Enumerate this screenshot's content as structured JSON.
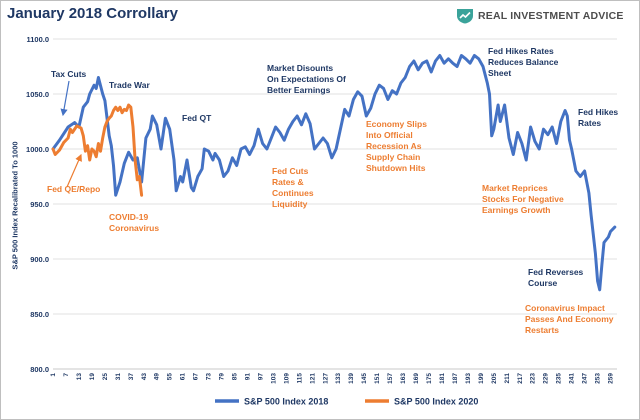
{
  "header": {
    "title": "January 2018 Corrollary",
    "brand": "REAL INVESTMENT ADVICE"
  },
  "colors": {
    "series_2018": "#4472c4",
    "series_2020": "#ed7d31",
    "annotation_blue": "#1f3864",
    "annotation_orange": "#ed7d31",
    "brand_green": "#3aa39a"
  },
  "chart_data": {
    "type": "line",
    "ylabel": "S&P 500 Index Recalibrated To 1000",
    "ylim": [
      800,
      1100
    ],
    "yticks": [
      800,
      850,
      900,
      950,
      1000,
      1050,
      1100
    ],
    "ytick_labels": [
      "800.0",
      "850.0",
      "900.0",
      "950.0",
      "1000.0",
      "1050.0",
      "1100.0"
    ],
    "xlim": [
      1,
      262
    ],
    "xticks": [
      1,
      7,
      13,
      19,
      25,
      31,
      37,
      43,
      49,
      55,
      61,
      67,
      73,
      79,
      85,
      91,
      97,
      103,
      109,
      115,
      121,
      127,
      133,
      139,
      145,
      151,
      157,
      163,
      169,
      175,
      181,
      187,
      193,
      199,
      205,
      211,
      217,
      223,
      229,
      235,
      241,
      247,
      253,
      259
    ],
    "grid": true,
    "legend_position": "bottom",
    "series": [
      {
        "name": "S&P 500 Index 2018",
        "color": "#4472c4",
        "points": [
          [
            1,
            1000
          ],
          [
            4,
            1008
          ],
          [
            8,
            1020
          ],
          [
            11,
            1024
          ],
          [
            13,
            1020
          ],
          [
            15,
            1038
          ],
          [
            17,
            1043
          ],
          [
            18,
            1050
          ],
          [
            20,
            1058
          ],
          [
            21,
            1055
          ],
          [
            22,
            1065
          ],
          [
            24,
            1050
          ],
          [
            25,
            1044
          ],
          [
            27,
            1012
          ],
          [
            28,
            1003
          ],
          [
            29,
            985
          ],
          [
            30,
            958
          ],
          [
            32,
            970
          ],
          [
            34,
            987
          ],
          [
            36,
            997
          ],
          [
            38,
            990
          ],
          [
            40,
            992
          ],
          [
            42,
            970
          ],
          [
            44,
            1010
          ],
          [
            46,
            1018
          ],
          [
            47,
            1030
          ],
          [
            49,
            1022
          ],
          [
            51,
            1000
          ],
          [
            53,
            1028
          ],
          [
            55,
            1018
          ],
          [
            57,
            990
          ],
          [
            58,
            962
          ],
          [
            60,
            975
          ],
          [
            61,
            970
          ],
          [
            63,
            990
          ],
          [
            65,
            965
          ],
          [
            66,
            962
          ],
          [
            68,
            975
          ],
          [
            70,
            982
          ],
          [
            71,
            1000
          ],
          [
            73,
            998
          ],
          [
            75,
            990
          ],
          [
            76,
            996
          ],
          [
            78,
            990
          ],
          [
            80,
            975
          ],
          [
            82,
            980
          ],
          [
            84,
            992
          ],
          [
            86,
            985
          ],
          [
            88,
            1000
          ],
          [
            90,
            1002
          ],
          [
            92,
            995
          ],
          [
            94,
            1003
          ],
          [
            96,
            1018
          ],
          [
            98,
            1005
          ],
          [
            100,
            1000
          ],
          [
            102,
            1010
          ],
          [
            104,
            1020
          ],
          [
            106,
            1015
          ],
          [
            108,
            1008
          ],
          [
            110,
            1018
          ],
          [
            112,
            1025
          ],
          [
            114,
            1030
          ],
          [
            116,
            1022
          ],
          [
            118,
            1032
          ],
          [
            120,
            1023
          ],
          [
            122,
            1000
          ],
          [
            124,
            1005
          ],
          [
            126,
            1010
          ],
          [
            128,
            1005
          ],
          [
            130,
            992
          ],
          [
            132,
            1000
          ],
          [
            134,
            1018
          ],
          [
            136,
            1036
          ],
          [
            138,
            1030
          ],
          [
            140,
            1045
          ],
          [
            142,
            1052
          ],
          [
            144,
            1048
          ],
          [
            146,
            1030
          ],
          [
            148,
            1037
          ],
          [
            150,
            1050
          ],
          [
            152,
            1058
          ],
          [
            154,
            1055
          ],
          [
            156,
            1045
          ],
          [
            158,
            1053
          ],
          [
            160,
            1050
          ],
          [
            162,
            1060
          ],
          [
            164,
            1065
          ],
          [
            166,
            1075
          ],
          [
            168,
            1080
          ],
          [
            170,
            1072
          ],
          [
            172,
            1078
          ],
          [
            174,
            1080
          ],
          [
            176,
            1070
          ],
          [
            178,
            1080
          ],
          [
            180,
            1085
          ],
          [
            182,
            1078
          ],
          [
            184,
            1082
          ],
          [
            186,
            1078
          ],
          [
            188,
            1075
          ],
          [
            190,
            1085
          ],
          [
            192,
            1082
          ],
          [
            194,
            1078
          ],
          [
            196,
            1085
          ],
          [
            198,
            1082
          ],
          [
            200,
            1075
          ],
          [
            202,
            1060
          ],
          [
            203,
            1050
          ],
          [
            204,
            1012
          ],
          [
            205,
            1018
          ],
          [
            207,
            1040
          ],
          [
            208,
            1025
          ],
          [
            210,
            1040
          ],
          [
            212,
            1010
          ],
          [
            214,
            995
          ],
          [
            216,
            1015
          ],
          [
            218,
            1005
          ],
          [
            220,
            990
          ],
          [
            222,
            1020
          ],
          [
            224,
            1007
          ],
          [
            226,
            1000
          ],
          [
            228,
            1018
          ],
          [
            230,
            1013
          ],
          [
            232,
            1020
          ],
          [
            234,
            1005
          ],
          [
            236,
            1025
          ],
          [
            238,
            1035
          ],
          [
            239,
            1030
          ],
          [
            240,
            1008
          ],
          [
            241,
            1000
          ],
          [
            243,
            980
          ],
          [
            245,
            975
          ],
          [
            247,
            980
          ],
          [
            249,
            960
          ],
          [
            250,
            940
          ],
          [
            252,
            905
          ],
          [
            253,
            880
          ],
          [
            254,
            872
          ],
          [
            255,
            895
          ],
          [
            256,
            915
          ],
          [
            258,
            920
          ],
          [
            259,
            925
          ],
          [
            261,
            929
          ]
        ]
      },
      {
        "name": "S&P 500 Index 2020",
        "color": "#ed7d31",
        "points": [
          [
            1,
            1000
          ],
          [
            2,
            995
          ],
          [
            4,
            999
          ],
          [
            6,
            1006
          ],
          [
            8,
            1010
          ],
          [
            9,
            1018
          ],
          [
            10,
            1015
          ],
          [
            12,
            1021
          ],
          [
            14,
            1019
          ],
          [
            15,
            1012
          ],
          [
            16,
            998
          ],
          [
            17,
            1003
          ],
          [
            18,
            990
          ],
          [
            19,
            1000
          ],
          [
            20,
            998
          ],
          [
            21,
            993
          ],
          [
            22,
            1005
          ],
          [
            23,
            998
          ],
          [
            24,
            1010
          ],
          [
            25,
            1020
          ],
          [
            26,
            1025
          ],
          [
            27,
            1028
          ],
          [
            28,
            1030
          ],
          [
            29,
            1035
          ],
          [
            30,
            1038
          ],
          [
            31,
            1035
          ],
          [
            32,
            1038
          ],
          [
            33,
            1033
          ],
          [
            34,
            1036
          ],
          [
            35,
            1035
          ],
          [
            36,
            1040
          ],
          [
            37,
            1038
          ],
          [
            38,
            1020
          ],
          [
            39,
            990
          ],
          [
            40,
            972
          ],
          [
            41,
            975
          ],
          [
            42,
            958
          ]
        ]
      }
    ],
    "annotations": [
      {
        "text": "Tax Cuts",
        "color": "blue"
      },
      {
        "text": "Trade War",
        "color": "blue"
      },
      {
        "text": "Fed QT",
        "color": "blue"
      },
      {
        "text": "Market Disounts On Expectations Of Better Earnings",
        "color": "blue"
      },
      {
        "text": "Fed Hikes Rates Reduces Balance Sheet",
        "color": "blue"
      },
      {
        "text": "Fed Hikes Rates",
        "color": "blue"
      },
      {
        "text": "Fed QE/Repo",
        "color": "orange"
      },
      {
        "text": "COVID-19 Coronavirus",
        "color": "orange"
      },
      {
        "text": "Fed Cuts Rates & Continues Liquidity",
        "color": "orange"
      },
      {
        "text": "Economy Slips Into Official Recession As Supply Chain Shutdown Hits",
        "color": "orange"
      },
      {
        "text": "Market Reprices Stocks For Negative Earnings Growth",
        "color": "orange"
      },
      {
        "text": "Fed Reverses Course",
        "color": "blue"
      },
      {
        "text": "Coronavirus Impact Passes And Economy Restarts",
        "color": "orange"
      }
    ]
  },
  "annotations_display": {
    "tax_cuts": [
      "Tax Cuts"
    ],
    "trade_war": [
      "Trade War"
    ],
    "fed_qt": [
      "Fed QT"
    ],
    "market_discounts": [
      "Market Disounts",
      "On Expectations Of",
      "Better Earnings"
    ],
    "fed_hikes_reduces": [
      "Fed Hikes Rates",
      "Reduces Balance",
      "Sheet"
    ],
    "fed_hikes": [
      "Fed Hikes",
      "Rates"
    ],
    "fed_qe": [
      "Fed QE/Repo"
    ],
    "covid": [
      "COVID-19",
      "Coronavirus"
    ],
    "fed_cuts": [
      "Fed Cuts",
      "Rates &",
      "Continues",
      "Liquidity"
    ],
    "economy_slips": [
      "Economy Slips",
      "Into Official",
      "Recession As",
      "Supply Chain",
      "Shutdown Hits"
    ],
    "market_reprices": [
      "Market Reprices",
      "Stocks For Negative",
      "Earnings Growth"
    ],
    "fed_reverses": [
      "Fed Reverses",
      "Course"
    ],
    "coronavirus_impact": [
      "Coronavirus Impact",
      "Passes And Economy",
      "Restarts"
    ]
  }
}
